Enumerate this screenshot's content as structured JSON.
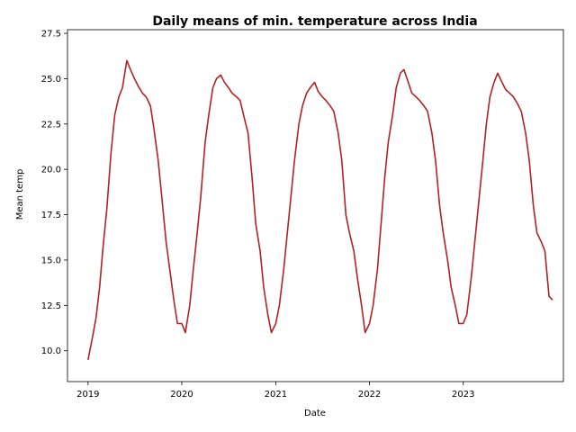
{
  "chart_data": {
    "type": "line",
    "title": "Daily means of min. temperature across India",
    "xlabel": "Date",
    "ylabel": "Mean temp",
    "xlim": [
      "2018-10-13",
      "2024-01-26"
    ],
    "ylim": [
      8.3,
      27.7
    ],
    "x_ticks": [
      "2019-01-01",
      "2020-01-01",
      "2021-01-01",
      "2022-01-01",
      "2023-01-01"
    ],
    "x_tick_labels": [
      "2019",
      "2020",
      "2021",
      "2022",
      "2023"
    ],
    "y_ticks": [
      10.0,
      12.5,
      15.0,
      17.5,
      20.0,
      22.5,
      25.0,
      27.5
    ],
    "y_tick_labels": [
      "10.0",
      "12.5",
      "15.0",
      "17.5",
      "20.0",
      "22.5",
      "25.0",
      "27.5"
    ],
    "grid": false,
    "line_color": "#b22222",
    "series": [
      {
        "points": [
          [
            "2019-01-01",
            9.5
          ],
          [
            "2019-01-15",
            10.5
          ],
          [
            "2019-02-01",
            11.8
          ],
          [
            "2019-02-15",
            13.5
          ],
          [
            "2019-03-01",
            15.8
          ],
          [
            "2019-03-15",
            17.8
          ],
          [
            "2019-04-01",
            21.0
          ],
          [
            "2019-04-15",
            23.0
          ],
          [
            "2019-05-01",
            24.0
          ],
          [
            "2019-05-15",
            24.5
          ],
          [
            "2019-06-01",
            26.0
          ],
          [
            "2019-06-15",
            25.5
          ],
          [
            "2019-07-01",
            25.0
          ],
          [
            "2019-07-15",
            24.6
          ],
          [
            "2019-08-01",
            24.2
          ],
          [
            "2019-08-15",
            24.0
          ],
          [
            "2019-09-01",
            23.5
          ],
          [
            "2019-09-15",
            22.2
          ],
          [
            "2019-10-01",
            20.5
          ],
          [
            "2019-10-15",
            18.5
          ],
          [
            "2019-11-01",
            16.0
          ],
          [
            "2019-11-15",
            14.5
          ],
          [
            "2019-12-01",
            12.8
          ],
          [
            "2019-12-15",
            11.5
          ],
          [
            "2020-01-01",
            11.5
          ],
          [
            "2020-01-15",
            11.0
          ],
          [
            "2020-02-01",
            12.5
          ],
          [
            "2020-02-15",
            14.5
          ],
          [
            "2020-03-01",
            16.5
          ],
          [
            "2020-03-15",
            18.5
          ],
          [
            "2020-04-01",
            21.5
          ],
          [
            "2020-04-15",
            23.0
          ],
          [
            "2020-05-01",
            24.5
          ],
          [
            "2020-05-15",
            25.0
          ],
          [
            "2020-06-01",
            25.2
          ],
          [
            "2020-06-15",
            24.8
          ],
          [
            "2020-07-01",
            24.5
          ],
          [
            "2020-07-15",
            24.2
          ],
          [
            "2020-08-01",
            24.0
          ],
          [
            "2020-08-15",
            23.8
          ],
          [
            "2020-09-01",
            22.8
          ],
          [
            "2020-09-15",
            22.0
          ],
          [
            "2020-10-01",
            19.5
          ],
          [
            "2020-10-15",
            17.0
          ],
          [
            "2020-11-01",
            15.5
          ],
          [
            "2020-11-15",
            13.5
          ],
          [
            "2020-12-01",
            12.0
          ],
          [
            "2020-12-15",
            11.0
          ],
          [
            "2021-01-01",
            11.5
          ],
          [
            "2021-01-15",
            12.5
          ],
          [
            "2021-02-01",
            14.5
          ],
          [
            "2021-02-15",
            16.5
          ],
          [
            "2021-03-01",
            18.5
          ],
          [
            "2021-03-15",
            20.5
          ],
          [
            "2021-04-01",
            22.5
          ],
          [
            "2021-04-15",
            23.5
          ],
          [
            "2021-05-01",
            24.2
          ],
          [
            "2021-05-15",
            24.5
          ],
          [
            "2021-06-01",
            24.8
          ],
          [
            "2021-06-15",
            24.3
          ],
          [
            "2021-07-01",
            24.0
          ],
          [
            "2021-07-15",
            23.8
          ],
          [
            "2021-08-01",
            23.5
          ],
          [
            "2021-08-15",
            23.2
          ],
          [
            "2021-09-01",
            22.0
          ],
          [
            "2021-09-15",
            20.5
          ],
          [
            "2021-10-01",
            17.5
          ],
          [
            "2021-10-15",
            16.5
          ],
          [
            "2021-11-01",
            15.5
          ],
          [
            "2021-11-15",
            14.0
          ],
          [
            "2021-12-01",
            12.5
          ],
          [
            "2021-12-15",
            11.0
          ],
          [
            "2022-01-01",
            11.5
          ],
          [
            "2022-01-15",
            12.5
          ],
          [
            "2022-02-01",
            14.5
          ],
          [
            "2022-02-15",
            17.0
          ],
          [
            "2022-03-01",
            19.5
          ],
          [
            "2022-03-15",
            21.5
          ],
          [
            "2022-04-01",
            23.0
          ],
          [
            "2022-04-15",
            24.5
          ],
          [
            "2022-05-01",
            25.3
          ],
          [
            "2022-05-15",
            25.5
          ],
          [
            "2022-06-01",
            24.8
          ],
          [
            "2022-06-15",
            24.2
          ],
          [
            "2022-07-01",
            24.0
          ],
          [
            "2022-07-15",
            23.8
          ],
          [
            "2022-08-01",
            23.5
          ],
          [
            "2022-08-15",
            23.2
          ],
          [
            "2022-09-01",
            22.0
          ],
          [
            "2022-09-15",
            20.5
          ],
          [
            "2022-10-01",
            18.0
          ],
          [
            "2022-10-15",
            16.5
          ],
          [
            "2022-11-01",
            15.0
          ],
          [
            "2022-11-15",
            13.5
          ],
          [
            "2022-12-01",
            12.5
          ],
          [
            "2022-12-15",
            11.5
          ],
          [
            "2023-01-01",
            11.5
          ],
          [
            "2023-01-15",
            12.0
          ],
          [
            "2023-02-01",
            14.0
          ],
          [
            "2023-02-15",
            16.0
          ],
          [
            "2023-03-01",
            18.0
          ],
          [
            "2023-03-15",
            20.0
          ],
          [
            "2023-04-01",
            22.5
          ],
          [
            "2023-04-15",
            24.0
          ],
          [
            "2023-05-01",
            24.8
          ],
          [
            "2023-05-15",
            25.3
          ],
          [
            "2023-06-01",
            24.8
          ],
          [
            "2023-06-15",
            24.4
          ],
          [
            "2023-07-01",
            24.2
          ],
          [
            "2023-07-15",
            24.0
          ],
          [
            "2023-08-01",
            23.6
          ],
          [
            "2023-08-15",
            23.2
          ],
          [
            "2023-09-01",
            22.0
          ],
          [
            "2023-09-15",
            20.5
          ],
          [
            "2023-10-01",
            18.0
          ],
          [
            "2023-10-15",
            16.5
          ],
          [
            "2023-11-01",
            16.0
          ],
          [
            "2023-11-15",
            15.5
          ],
          [
            "2023-12-01",
            13.0
          ],
          [
            "2023-12-15",
            12.8
          ]
        ]
      }
    ]
  }
}
